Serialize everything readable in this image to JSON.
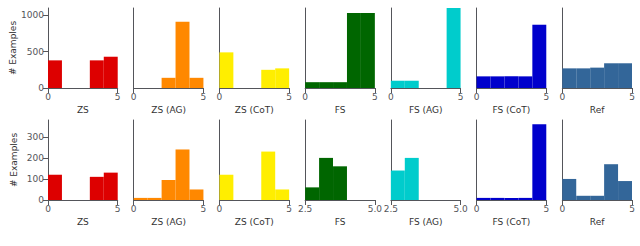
{
  "chart_data": [
    {
      "type": "histogram",
      "xlabel": "ZS",
      "ylabel": "# Examples",
      "color": "#dd0000",
      "bins": [
        0,
        1,
        2,
        3,
        4,
        5
      ],
      "values": [
        380,
        0,
        0,
        380,
        430
      ],
      "xlim": [
        0,
        5
      ],
      "xticks": [
        0,
        5
      ],
      "ylim": [
        0,
        1100
      ],
      "yticks": [
        0,
        500,
        1000
      ],
      "grid": false
    },
    {
      "type": "histogram",
      "xlabel": "ZS (AG)",
      "color": "#ff8800",
      "bins": [
        0,
        1,
        2,
        3,
        4,
        5
      ],
      "values": [
        0,
        0,
        140,
        910,
        140
      ],
      "xlim": [
        0,
        5
      ],
      "xticks": [
        0,
        5
      ],
      "ylim": [
        0,
        1100
      ],
      "tick_labels": "x",
      "grid": false
    },
    {
      "type": "histogram",
      "xlabel": "ZS (CoT)",
      "color": "#ffee00",
      "bins": [
        0,
        1,
        2,
        3,
        4,
        5
      ],
      "values": [
        490,
        0,
        0,
        250,
        270
      ],
      "xlim": [
        0,
        5
      ],
      "xticks": [
        0,
        5
      ],
      "ylim": [
        0,
        1100
      ],
      "tick_labels": "x",
      "grid": false
    },
    {
      "type": "histogram",
      "xlabel": "FS",
      "color": "#006600",
      "bins": [
        0,
        1,
        2,
        3,
        4,
        5
      ],
      "values": [
        80,
        80,
        80,
        1030,
        1030
      ],
      "xlim": [
        0,
        5
      ],
      "xticks": [
        0,
        5
      ],
      "ylim": [
        0,
        1100
      ],
      "tick_labels": "x",
      "grid": false
    },
    {
      "type": "histogram",
      "xlabel": "FS (AG)",
      "color": "#00cccc",
      "bins": [
        0,
        1,
        2,
        3,
        4,
        5
      ],
      "values": [
        100,
        100,
        0,
        0,
        1100
      ],
      "xlim": [
        0,
        5
      ],
      "xticks": [
        0,
        5
      ],
      "ylim": [
        0,
        1100
      ],
      "tick_labels": "x",
      "grid": false
    },
    {
      "type": "histogram",
      "xlabel": "FS (CoT)",
      "color": "#0000cc",
      "bins": [
        0,
        1,
        2,
        3,
        4,
        5
      ],
      "values": [
        160,
        160,
        160,
        160,
        870
      ],
      "xlim": [
        0,
        5
      ],
      "xticks": [
        0,
        5
      ],
      "ylim": [
        0,
        1100
      ],
      "tick_labels": "x",
      "grid": false
    },
    {
      "type": "histogram",
      "xlabel": "Ref",
      "color": "#336699",
      "bins": [
        0,
        1,
        2,
        3,
        4,
        5
      ],
      "values": [
        270,
        270,
        280,
        340,
        340
      ],
      "xlim": [
        0,
        5
      ],
      "xticks": [
        0,
        5
      ],
      "ylim": [
        0,
        1100
      ],
      "tick_labels": "x",
      "grid": false
    },
    {
      "type": "histogram",
      "xlabel": "ZS",
      "ylabel": "# Examples",
      "color": "#dd0000",
      "bins": [
        0,
        1,
        2,
        3,
        4,
        5
      ],
      "values": [
        120,
        0,
        0,
        110,
        130
      ],
      "xlim": [
        0,
        5
      ],
      "xticks": [
        0,
        5
      ],
      "ylim": [
        0,
        380
      ],
      "yticks": [
        0,
        100,
        200,
        300
      ],
      "grid": false
    },
    {
      "type": "histogram",
      "xlabel": "ZS (AG)",
      "color": "#ff8800",
      "bins": [
        0,
        1,
        2,
        3,
        4,
        5
      ],
      "values": [
        10,
        10,
        95,
        240,
        50
      ],
      "xlim": [
        0,
        5
      ],
      "xticks": [
        0,
        5
      ],
      "ylim": [
        0,
        380
      ],
      "tick_labels": "x",
      "grid": false
    },
    {
      "type": "histogram",
      "xlabel": "ZS (CoT)",
      "color": "#ffee00",
      "bins": [
        0,
        1,
        2,
        3,
        4,
        5
      ],
      "values": [
        120,
        0,
        0,
        230,
        50
      ],
      "xlim": [
        0,
        5
      ],
      "xticks": [
        0,
        5
      ],
      "ylim": [
        0,
        380
      ],
      "tick_labels": "x",
      "grid": false
    },
    {
      "type": "histogram",
      "xlabel": "FS",
      "color": "#006600",
      "bins": [
        2.5,
        3.0,
        3.5,
        4.0,
        4.5,
        5.0
      ],
      "values": [
        60,
        200,
        160,
        0,
        0
      ],
      "xlim": [
        2.5,
        5.0
      ],
      "xticks": [
        2.5,
        {
          "value": 5.0,
          "label": "5.0"
        }
      ],
      "ylim": [
        0,
        380
      ],
      "tick_labels": "x",
      "grid": false
    },
    {
      "type": "histogram",
      "xlabel": "FS (AG)",
      "color": "#00cccc",
      "bins": [
        2.5,
        3.0,
        3.5,
        4.0,
        4.5,
        5.0
      ],
      "values": [
        140,
        200,
        0,
        0,
        0
      ],
      "xlim": [
        2.5,
        5.0
      ],
      "xticks": [
        2.5,
        {
          "value": 5.0,
          "label": "5.0"
        }
      ],
      "ylim": [
        0,
        380
      ],
      "tick_labels": "x",
      "grid": false
    },
    {
      "type": "histogram",
      "xlabel": "FS (CoT)",
      "color": "#0000cc",
      "bins": [
        0,
        1,
        2,
        3,
        4,
        5
      ],
      "values": [
        10,
        10,
        10,
        10,
        360
      ],
      "xlim": [
        0,
        5
      ],
      "xticks": [
        0,
        5
      ],
      "ylim": [
        0,
        380
      ],
      "tick_labels": "x",
      "grid": false
    },
    {
      "type": "histogram",
      "xlabel": "Ref",
      "color": "#336699",
      "bins": [
        0,
        1,
        2,
        3,
        4,
        5
      ],
      "values": [
        100,
        20,
        20,
        170,
        90
      ],
      "xlim": [
        0,
        5
      ],
      "xticks": [
        0,
        5
      ],
      "ylim": [
        0,
        380
      ],
      "tick_labels": "x",
      "grid": false
    }
  ]
}
